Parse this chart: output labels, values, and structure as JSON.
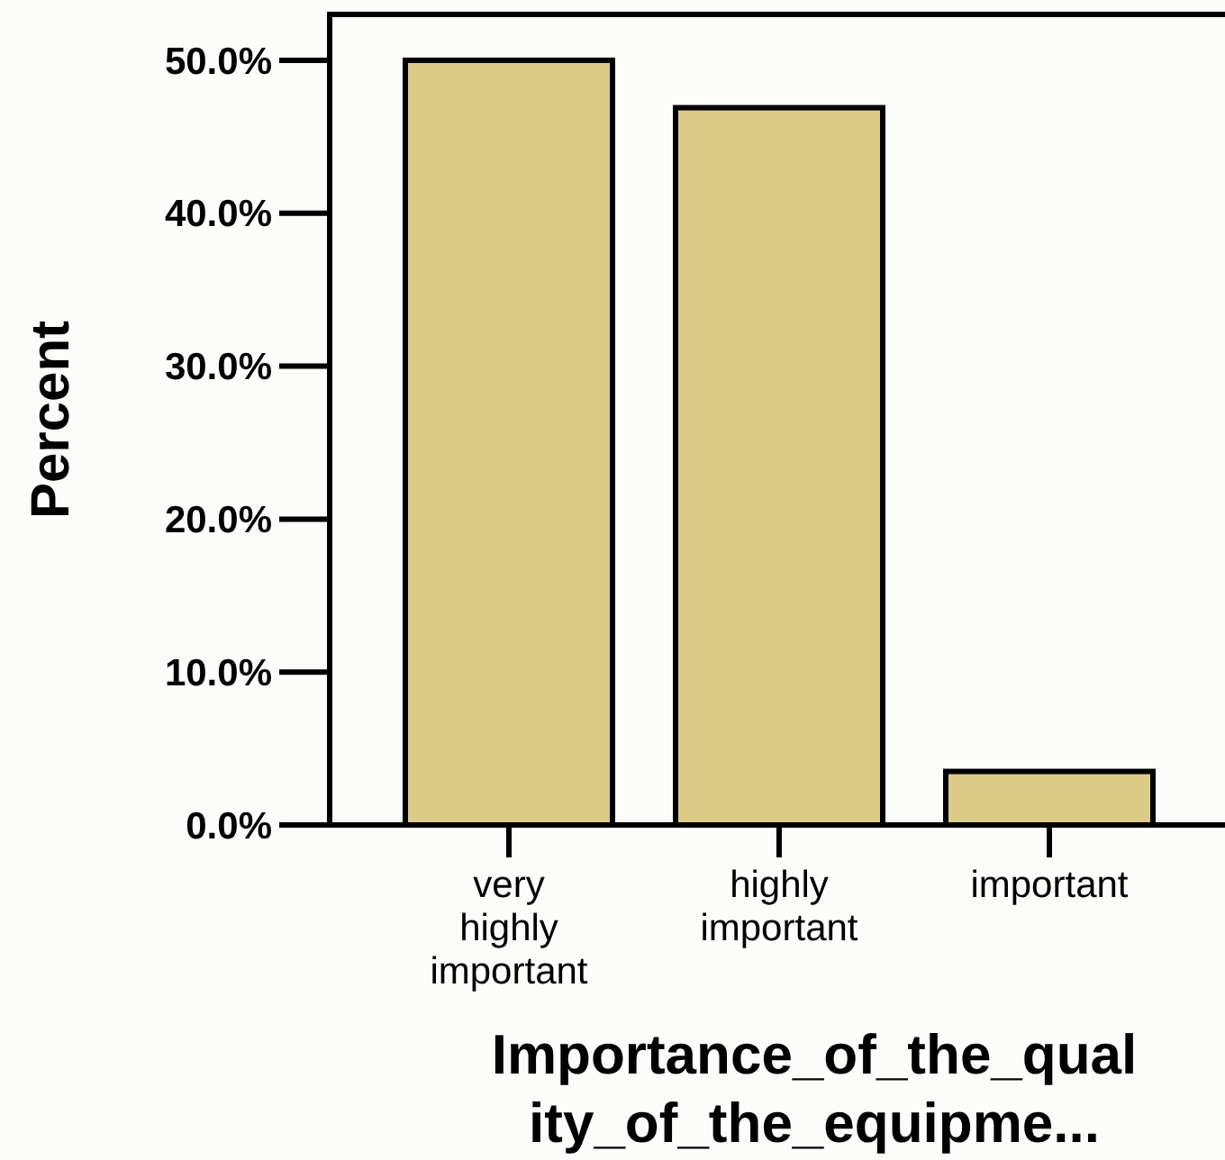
{
  "chart_data": {
    "type": "bar",
    "xlabel": "Importance_of_the_quality_of_the_equipme...",
    "ylabel": "Percent",
    "categories": [
      "very highly important",
      "highly important",
      "important"
    ],
    "values": [
      50.0,
      46.9,
      3.5
    ],
    "color": "#dccb88",
    "ylim": [
      0,
      53
    ],
    "yticks": [
      {
        "value": 0,
        "label": "0.0%"
      },
      {
        "value": 10,
        "label": "10.0%"
      },
      {
        "value": 20,
        "label": "20.0%"
      },
      {
        "value": 30,
        "label": "30.0%"
      },
      {
        "value": 40,
        "label": "40.0%"
      },
      {
        "value": 50,
        "label": "50.0%"
      }
    ],
    "grid": false
  }
}
